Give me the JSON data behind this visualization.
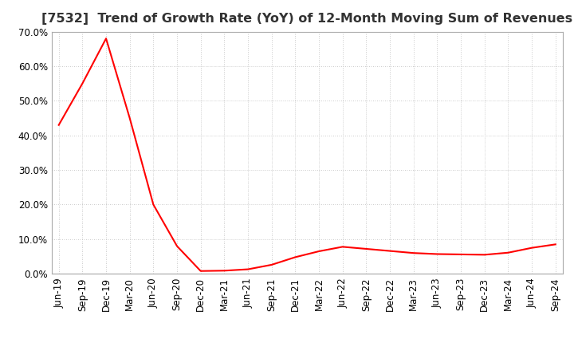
{
  "title": "[7532]  Trend of Growth Rate (YoY) of 12-Month Moving Sum of Revenues",
  "line_color": "#FF0000",
  "background_color": "#FFFFFF",
  "grid_color": "#BBBBBB",
  "border_color": "#AAAAAA",
  "x_labels": [
    "Jun-19",
    "Sep-19",
    "Dec-19",
    "Mar-20",
    "Jun-20",
    "Sep-20",
    "Dec-20",
    "Mar-21",
    "Jun-21",
    "Sep-21",
    "Dec-21",
    "Mar-22",
    "Jun-22",
    "Sep-22",
    "Dec-22",
    "Mar-23",
    "Jun-23",
    "Sep-23",
    "Dec-23",
    "Mar-24",
    "Jun-24",
    "Sep-24"
  ],
  "y_values": [
    0.43,
    0.55,
    0.68,
    0.45,
    0.2,
    0.08,
    0.008,
    0.009,
    0.013,
    0.026,
    0.048,
    0.065,
    0.078,
    0.072,
    0.066,
    0.06,
    0.057,
    0.056,
    0.055,
    0.061,
    0.075,
    0.085
  ],
  "ylim": [
    0.0,
    0.7
  ],
  "yticks": [
    0.0,
    0.1,
    0.2,
    0.3,
    0.4,
    0.5,
    0.6,
    0.7
  ],
  "title_fontsize": 11.5,
  "tick_fontsize": 8.5,
  "line_width": 1.5
}
